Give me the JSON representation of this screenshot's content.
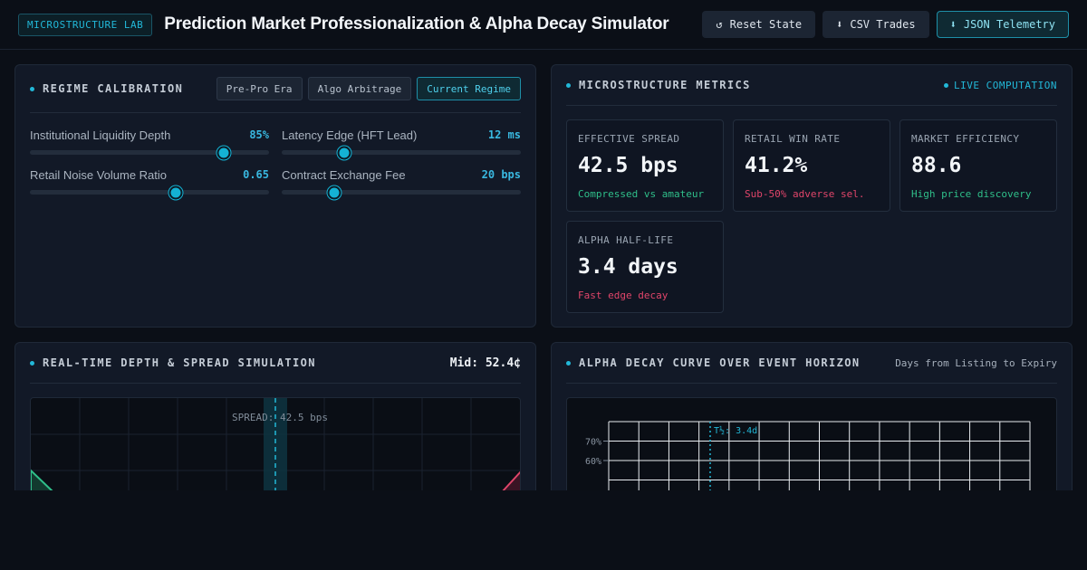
{
  "header": {
    "badge": "MICROSTRUCTURE LAB",
    "title": "Prediction Market Professionalization & Alpha Decay Simulator",
    "actions": [
      {
        "icon": "reset-icon",
        "glyph": "↺",
        "label": "Reset State"
      },
      {
        "icon": "download-icon",
        "glyph": "⬇",
        "label": "CSV Trades"
      },
      {
        "icon": "download-icon",
        "glyph": "⬇",
        "label": "JSON Telemetry"
      }
    ]
  },
  "regime": {
    "title": "REGIME CALIBRATION",
    "presets": [
      "Pre-Pro Era",
      "Algo Arbitrage",
      "Current Regime"
    ],
    "active_preset": "Current Regime",
    "sliders": [
      {
        "label": "Institutional Liquidity Depth",
        "value": "85%",
        "level": 0.81
      },
      {
        "label": "Latency Edge (HFT Lead)",
        "value": "12 ms",
        "level": 0.26
      },
      {
        "label": "Retail Noise Volume Ratio",
        "value": "0.65",
        "level": 0.61
      },
      {
        "label": "Contract Exchange Fee",
        "value": "20 bps",
        "level": 0.22
      }
    ]
  },
  "metrics": {
    "title": "MICROSTRUCTURE METRICS",
    "status": "LIVE COMPUTATION",
    "cards": [
      {
        "label": "EFFECTIVE SPREAD",
        "value": "42.5 bps",
        "note": "Compressed vs amateur",
        "tone": "green"
      },
      {
        "label": "RETAIL WIN RATE",
        "value": "41.2%",
        "note": "Sub-50% adverse sel.",
        "tone": "red"
      },
      {
        "label": "MARKET EFFICIENCY",
        "value": "88.6",
        "note": "High price discovery",
        "tone": "green"
      },
      {
        "label": "ALPHA HALF-LIFE",
        "value": "3.4 days",
        "note": "Fast edge decay",
        "tone": "red"
      }
    ]
  },
  "depth": {
    "title": "REAL-TIME DEPTH & SPREAD SIMULATION",
    "mid_label": "Mid: 52.4¢",
    "spread_label": "SPREAD: 42.5 bps",
    "colors": {
      "bid": "#2fbf8a",
      "ask": "#e0456a",
      "spread": "#22b8d8"
    }
  },
  "alpha": {
    "title": "ALPHA DECAY CURVE OVER EVENT HORIZON",
    "x_caption": "Days from Listing to Expiry",
    "half_life_label": "T½: 3.4d"
  },
  "chart_data": {
    "type": "line",
    "title": "ALPHA DECAY CURVE OVER EVENT HORIZON",
    "xlabel": "Days from Listing to Expiry",
    "ylabel": "",
    "y_ticks": [
      "70%",
      "60%"
    ],
    "y_tick_values": [
      70,
      60
    ],
    "annotations": [
      {
        "label": "T½: 3.4d",
        "x": 3.4
      }
    ],
    "grid": true,
    "series": []
  }
}
